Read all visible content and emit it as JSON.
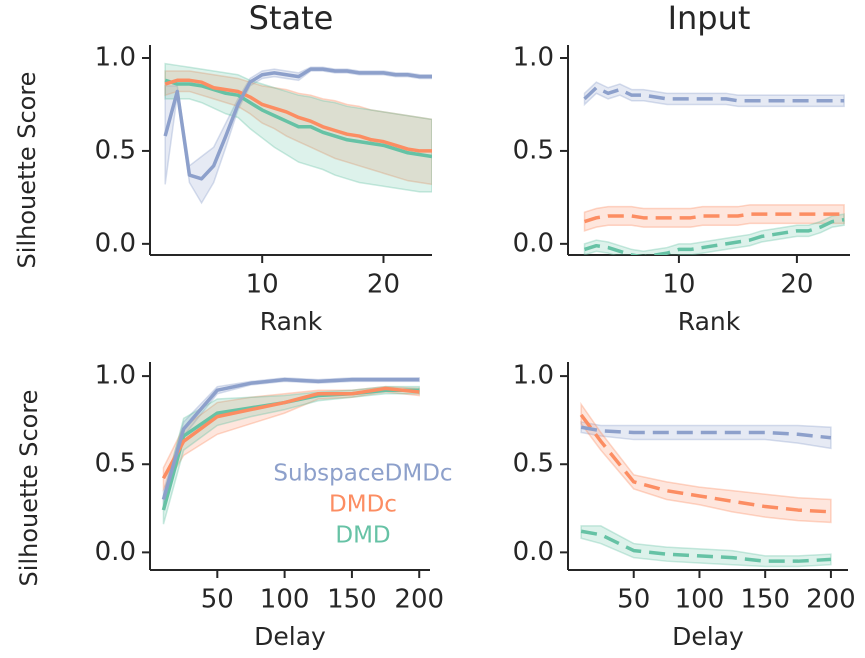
{
  "chart_data": [
    {
      "type": "line",
      "title": "State",
      "xlabel": "Rank",
      "ylabel": "Silhouette Score",
      "legend": false,
      "dash": false,
      "xlim": [
        0.75,
        24
      ],
      "ylim": [
        -0.06,
        1.07
      ],
      "xticks": [
        10,
        20
      ],
      "yticks": [
        {
          "value": 0,
          "label": "0.0"
        },
        0.5,
        {
          "value": 1,
          "label": "1.0"
        }
      ],
      "x": [
        2,
        3,
        4,
        5,
        6,
        7,
        8,
        9,
        10,
        11,
        12,
        13,
        14,
        15,
        16,
        17,
        18,
        19,
        20,
        21,
        22,
        23,
        24
      ],
      "series": [
        {
          "name": "SubspaceDMDc",
          "color": "#8da0cb",
          "values": [
            0.58,
            0.82,
            0.37,
            0.35,
            0.42,
            0.58,
            0.75,
            0.87,
            0.91,
            0.92,
            0.91,
            0.9,
            0.94,
            0.94,
            0.93,
            0.93,
            0.92,
            0.92,
            0.92,
            0.91,
            0.91,
            0.9,
            0.9
          ],
          "lower": [
            0.32,
            0.8,
            0.33,
            0.22,
            0.33,
            0.52,
            0.72,
            0.85,
            0.89,
            0.9,
            0.89,
            0.88,
            0.93,
            0.93,
            0.92,
            0.92,
            0.91,
            0.91,
            0.91,
            0.9,
            0.9,
            0.89,
            0.89
          ],
          "upper": [
            0.85,
            0.85,
            0.42,
            0.47,
            0.52,
            0.65,
            0.78,
            0.89,
            0.93,
            0.94,
            0.93,
            0.92,
            0.95,
            0.95,
            0.94,
            0.94,
            0.93,
            0.93,
            0.93,
            0.92,
            0.92,
            0.91,
            0.91
          ]
        },
        {
          "name": "DMDc",
          "color": "#fc8d62",
          "values": [
            0.86,
            0.88,
            0.88,
            0.87,
            0.84,
            0.83,
            0.82,
            0.79,
            0.75,
            0.73,
            0.71,
            0.68,
            0.66,
            0.63,
            0.61,
            0.59,
            0.58,
            0.56,
            0.55,
            0.53,
            0.51,
            0.5,
            0.5
          ],
          "lower": [
            0.8,
            0.82,
            0.82,
            0.8,
            0.78,
            0.76,
            0.74,
            0.7,
            0.65,
            0.62,
            0.58,
            0.55,
            0.52,
            0.49,
            0.46,
            0.44,
            0.42,
            0.4,
            0.38,
            0.36,
            0.34,
            0.33,
            0.32
          ],
          "upper": [
            0.93,
            0.93,
            0.93,
            0.92,
            0.91,
            0.9,
            0.89,
            0.87,
            0.85,
            0.84,
            0.83,
            0.81,
            0.8,
            0.78,
            0.77,
            0.75,
            0.74,
            0.72,
            0.71,
            0.7,
            0.69,
            0.68,
            0.67
          ]
        },
        {
          "name": "DMD",
          "color": "#66c2a5",
          "values": [
            0.88,
            0.86,
            0.86,
            0.85,
            0.83,
            0.81,
            0.8,
            0.76,
            0.72,
            0.69,
            0.66,
            0.63,
            0.63,
            0.6,
            0.58,
            0.56,
            0.55,
            0.54,
            0.53,
            0.51,
            0.49,
            0.48,
            0.47
          ],
          "lower": [
            0.78,
            0.78,
            0.78,
            0.76,
            0.73,
            0.7,
            0.68,
            0.62,
            0.57,
            0.52,
            0.48,
            0.44,
            0.42,
            0.4,
            0.37,
            0.35,
            0.33,
            0.32,
            0.31,
            0.3,
            0.29,
            0.28,
            0.28
          ],
          "upper": [
            0.97,
            0.96,
            0.95,
            0.94,
            0.93,
            0.92,
            0.91,
            0.88,
            0.86,
            0.84,
            0.82,
            0.8,
            0.79,
            0.77,
            0.76,
            0.74,
            0.73,
            0.72,
            0.71,
            0.7,
            0.69,
            0.68,
            0.67
          ]
        }
      ]
    },
    {
      "type": "line",
      "title": "Input",
      "xlabel": "Rank",
      "legend": false,
      "dash": true,
      "xlim": [
        0.6,
        24.5
      ],
      "ylim": [
        -0.06,
        1.07
      ],
      "xticks": [
        10,
        20
      ],
      "yticks": [
        {
          "value": 0,
          "label": "0.0"
        },
        0.5,
        {
          "value": 1,
          "label": "1.0"
        }
      ],
      "x": [
        2,
        3,
        4,
        5,
        6,
        7,
        8,
        9,
        10,
        11,
        12,
        13,
        14,
        15,
        16,
        17,
        18,
        19,
        20,
        21,
        22,
        23,
        24
      ],
      "series": [
        {
          "name": "SubspaceDMDc",
          "color": "#8da0cb",
          "values": [
            0.78,
            0.84,
            0.81,
            0.83,
            0.8,
            0.8,
            0.79,
            0.78,
            0.78,
            0.78,
            0.78,
            0.78,
            0.78,
            0.77,
            0.77,
            0.77,
            0.77,
            0.77,
            0.77,
            0.77,
            0.77,
            0.77,
            0.77
          ],
          "lower": [
            0.75,
            0.81,
            0.78,
            0.8,
            0.77,
            0.77,
            0.76,
            0.75,
            0.75,
            0.75,
            0.75,
            0.75,
            0.75,
            0.74,
            0.74,
            0.74,
            0.74,
            0.74,
            0.74,
            0.74,
            0.74,
            0.74,
            0.74
          ],
          "upper": [
            0.81,
            0.87,
            0.84,
            0.86,
            0.83,
            0.83,
            0.82,
            0.81,
            0.81,
            0.81,
            0.81,
            0.81,
            0.81,
            0.8,
            0.8,
            0.8,
            0.8,
            0.8,
            0.8,
            0.8,
            0.8,
            0.8,
            0.8
          ]
        },
        {
          "name": "DMDc",
          "color": "#fc8d62",
          "values": [
            0.12,
            0.14,
            0.15,
            0.15,
            0.15,
            0.14,
            0.14,
            0.14,
            0.14,
            0.14,
            0.15,
            0.15,
            0.15,
            0.15,
            0.16,
            0.16,
            0.16,
            0.16,
            0.16,
            0.16,
            0.16,
            0.16,
            0.16
          ],
          "lower": [
            0.07,
            0.09,
            0.1,
            0.1,
            0.1,
            0.09,
            0.09,
            0.09,
            0.09,
            0.09,
            0.1,
            0.1,
            0.1,
            0.1,
            0.11,
            0.11,
            0.11,
            0.11,
            0.11,
            0.11,
            0.11,
            0.11,
            0.11
          ],
          "upper": [
            0.17,
            0.19,
            0.2,
            0.2,
            0.2,
            0.19,
            0.19,
            0.19,
            0.19,
            0.19,
            0.2,
            0.2,
            0.2,
            0.2,
            0.21,
            0.21,
            0.21,
            0.21,
            0.21,
            0.21,
            0.21,
            0.21,
            0.21
          ]
        },
        {
          "name": "DMD",
          "color": "#66c2a5",
          "values": [
            -0.03,
            -0.01,
            -0.02,
            -0.04,
            -0.06,
            -0.07,
            -0.06,
            -0.05,
            -0.03,
            -0.03,
            -0.02,
            -0.01,
            0.0,
            0.01,
            0.02,
            0.04,
            0.05,
            0.06,
            0.07,
            0.07,
            0.09,
            0.12,
            0.13
          ],
          "lower": [
            -0.06,
            -0.04,
            -0.05,
            -0.07,
            -0.09,
            -0.1,
            -0.09,
            -0.08,
            -0.06,
            -0.06,
            -0.05,
            -0.04,
            -0.03,
            -0.02,
            -0.01,
            0.01,
            0.02,
            0.03,
            0.04,
            0.04,
            0.06,
            0.09,
            0.1
          ],
          "upper": [
            0,
            0.02,
            0.01,
            -0.01,
            -0.03,
            -0.04,
            -0.03,
            -0.02,
            0,
            0,
            0.01,
            0.02,
            0.03,
            0.04,
            0.05,
            0.07,
            0.08,
            0.09,
            0.1,
            0.1,
            0.12,
            0.15,
            0.16
          ]
        }
      ]
    },
    {
      "type": "line",
      "xlabel": "Delay",
      "ylabel": "Silhouette Score",
      "legend": true,
      "dash": false,
      "xlim": [
        0,
        208
      ],
      "ylim": [
        -0.1,
        1.08
      ],
      "xticks": [
        50,
        100,
        150,
        200
      ],
      "yticks": [
        {
          "value": 0,
          "label": "0.0"
        },
        0.5,
        {
          "value": 1,
          "label": "1.0"
        }
      ],
      "x": [
        10,
        25,
        50,
        75,
        100,
        125,
        150,
        175,
        200
      ],
      "series": [
        {
          "name": "SubspaceDMDc",
          "color": "#8da0cb",
          "values": [
            0.3,
            0.7,
            0.92,
            0.96,
            0.98,
            0.97,
            0.98,
            0.98,
            0.98
          ],
          "lower": [
            0.25,
            0.66,
            0.9,
            0.95,
            0.97,
            0.96,
            0.97,
            0.97,
            0.97
          ],
          "upper": [
            0.35,
            0.74,
            0.94,
            0.97,
            0.99,
            0.98,
            0.99,
            0.99,
            0.99
          ]
        },
        {
          "name": "DMDc",
          "color": "#fc8d62",
          "values": [
            0.42,
            0.63,
            0.77,
            0.81,
            0.85,
            0.9,
            0.9,
            0.93,
            0.91
          ],
          "lower": [
            0.36,
            0.55,
            0.67,
            0.73,
            0.79,
            0.87,
            0.88,
            0.91,
            0.89
          ],
          "upper": [
            0.48,
            0.71,
            0.85,
            0.88,
            0.9,
            0.92,
            0.92,
            0.94,
            0.93
          ]
        },
        {
          "name": "DMD",
          "color": "#66c2a5",
          "values": [
            0.24,
            0.66,
            0.79,
            0.82,
            0.85,
            0.89,
            0.9,
            0.92,
            0.92
          ],
          "lower": [
            0.16,
            0.58,
            0.72,
            0.77,
            0.81,
            0.86,
            0.88,
            0.9,
            0.9
          ],
          "upper": [
            0.32,
            0.76,
            0.87,
            0.88,
            0.89,
            0.91,
            0.92,
            0.94,
            0.94
          ]
        }
      ]
    },
    {
      "type": "line",
      "xlabel": "Delay",
      "legend": false,
      "dash": true,
      "xlim": [
        0,
        213
      ],
      "ylim": [
        -0.1,
        1.08
      ],
      "xticks": [
        50,
        100,
        150,
        200
      ],
      "yticks": [
        {
          "value": 0,
          "label": "0.0"
        },
        0.5,
        {
          "value": 1,
          "label": "1.0"
        }
      ],
      "x": [
        10,
        25,
        50,
        75,
        100,
        125,
        150,
        175,
        200
      ],
      "series": [
        {
          "name": "SubspaceDMDc",
          "color": "#8da0cb",
          "values": [
            0.71,
            0.69,
            0.68,
            0.68,
            0.68,
            0.68,
            0.68,
            0.67,
            0.65
          ],
          "lower": [
            0.68,
            0.66,
            0.64,
            0.64,
            0.64,
            0.64,
            0.64,
            0.62,
            0.59
          ],
          "upper": [
            0.74,
            0.72,
            0.72,
            0.72,
            0.72,
            0.72,
            0.72,
            0.72,
            0.71
          ]
        },
        {
          "name": "DMDc",
          "color": "#fc8d62",
          "values": [
            0.78,
            0.63,
            0.4,
            0.35,
            0.32,
            0.29,
            0.26,
            0.24,
            0.23
          ],
          "lower": [
            0.73,
            0.58,
            0.36,
            0.3,
            0.27,
            0.23,
            0.2,
            0.18,
            0.17
          ],
          "upper": [
            0.84,
            0.68,
            0.44,
            0.4,
            0.37,
            0.35,
            0.33,
            0.31,
            0.3
          ]
        },
        {
          "name": "DMD",
          "color": "#66c2a5",
          "values": [
            0.12,
            0.1,
            0.01,
            -0.01,
            -0.02,
            -0.03,
            -0.05,
            -0.05,
            -0.04
          ],
          "lower": [
            0.08,
            0.05,
            -0.03,
            -0.05,
            -0.06,
            -0.07,
            -0.08,
            -0.08,
            -0.07
          ],
          "upper": [
            0.15,
            0.15,
            0.05,
            0.03,
            0.02,
            0.01,
            -0.02,
            -0.02,
            -0.01
          ]
        }
      ]
    }
  ]
}
